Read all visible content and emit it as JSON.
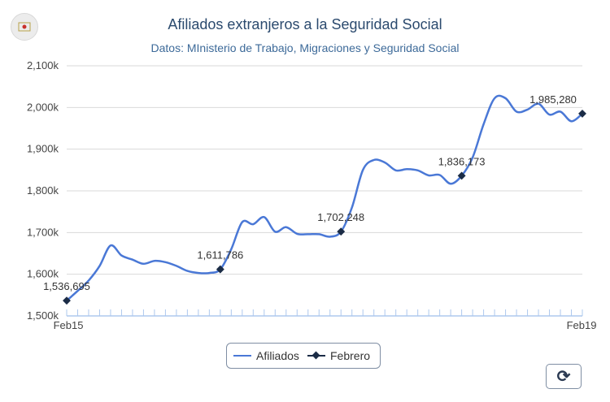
{
  "title": "Afiliados extranjeros a la Seguridad Social",
  "subtitle": "Datos: MInisterio de Trabajo, Migraciones y Seguridad Social",
  "logo_icon": "seal-logo-icon",
  "refresh_icon": "refresh-icon",
  "colors": {
    "line": "#4a78d6",
    "marker": "#1b2c46",
    "grid": "#d9d9d9",
    "axis": "#adc8ee"
  },
  "legend": [
    {
      "label": "Afiliados",
      "kind": "line"
    },
    {
      "label": "Febrero",
      "kind": "marker"
    }
  ],
  "chart_data": {
    "type": "line",
    "title": "Afiliados extranjeros a la Seguridad Social",
    "subtitle": "Datos: MInisterio de Trabajo, Migraciones y Seguridad Social",
    "xlabel": "",
    "ylabel": "",
    "x_ticks": [
      "Feb15",
      "Feb19"
    ],
    "y_ticks": [
      "1,500k",
      "1,600k",
      "1,700k",
      "1,800k",
      "1,900k",
      "2,000k",
      "2,100k"
    ],
    "ylim": [
      1500000,
      2100000
    ],
    "grid": true,
    "legend_position": "bottom",
    "series": [
      {
        "name": "Afiliados",
        "values": [
          1536695,
          1560000,
          1585000,
          1620000,
          1669000,
          1645000,
          1635000,
          1625000,
          1632000,
          1629000,
          1620000,
          1608000,
          1603000,
          1603000,
          1611786,
          1660000,
          1725000,
          1720000,
          1737000,
          1702000,
          1713000,
          1697000,
          1696000,
          1696000,
          1690000,
          1702248,
          1760000,
          1850000,
          1874000,
          1868000,
          1849000,
          1852000,
          1849000,
          1837000,
          1838000,
          1817000,
          1836173,
          1880000,
          1960000,
          2022000,
          2022000,
          1990000,
          1995000,
          2009000,
          1983000,
          1990000,
          1967000,
          1985280
        ]
      },
      {
        "name": "Febrero",
        "x_index": [
          0,
          14,
          25,
          36,
          47
        ],
        "values": [
          1536695,
          1611786,
          1702248,
          1836173,
          1985280
        ],
        "labels": [
          "1,536,695",
          "1,611,786",
          "1,702,248",
          "1,836,173",
          "1,985,280"
        ]
      }
    ]
  }
}
